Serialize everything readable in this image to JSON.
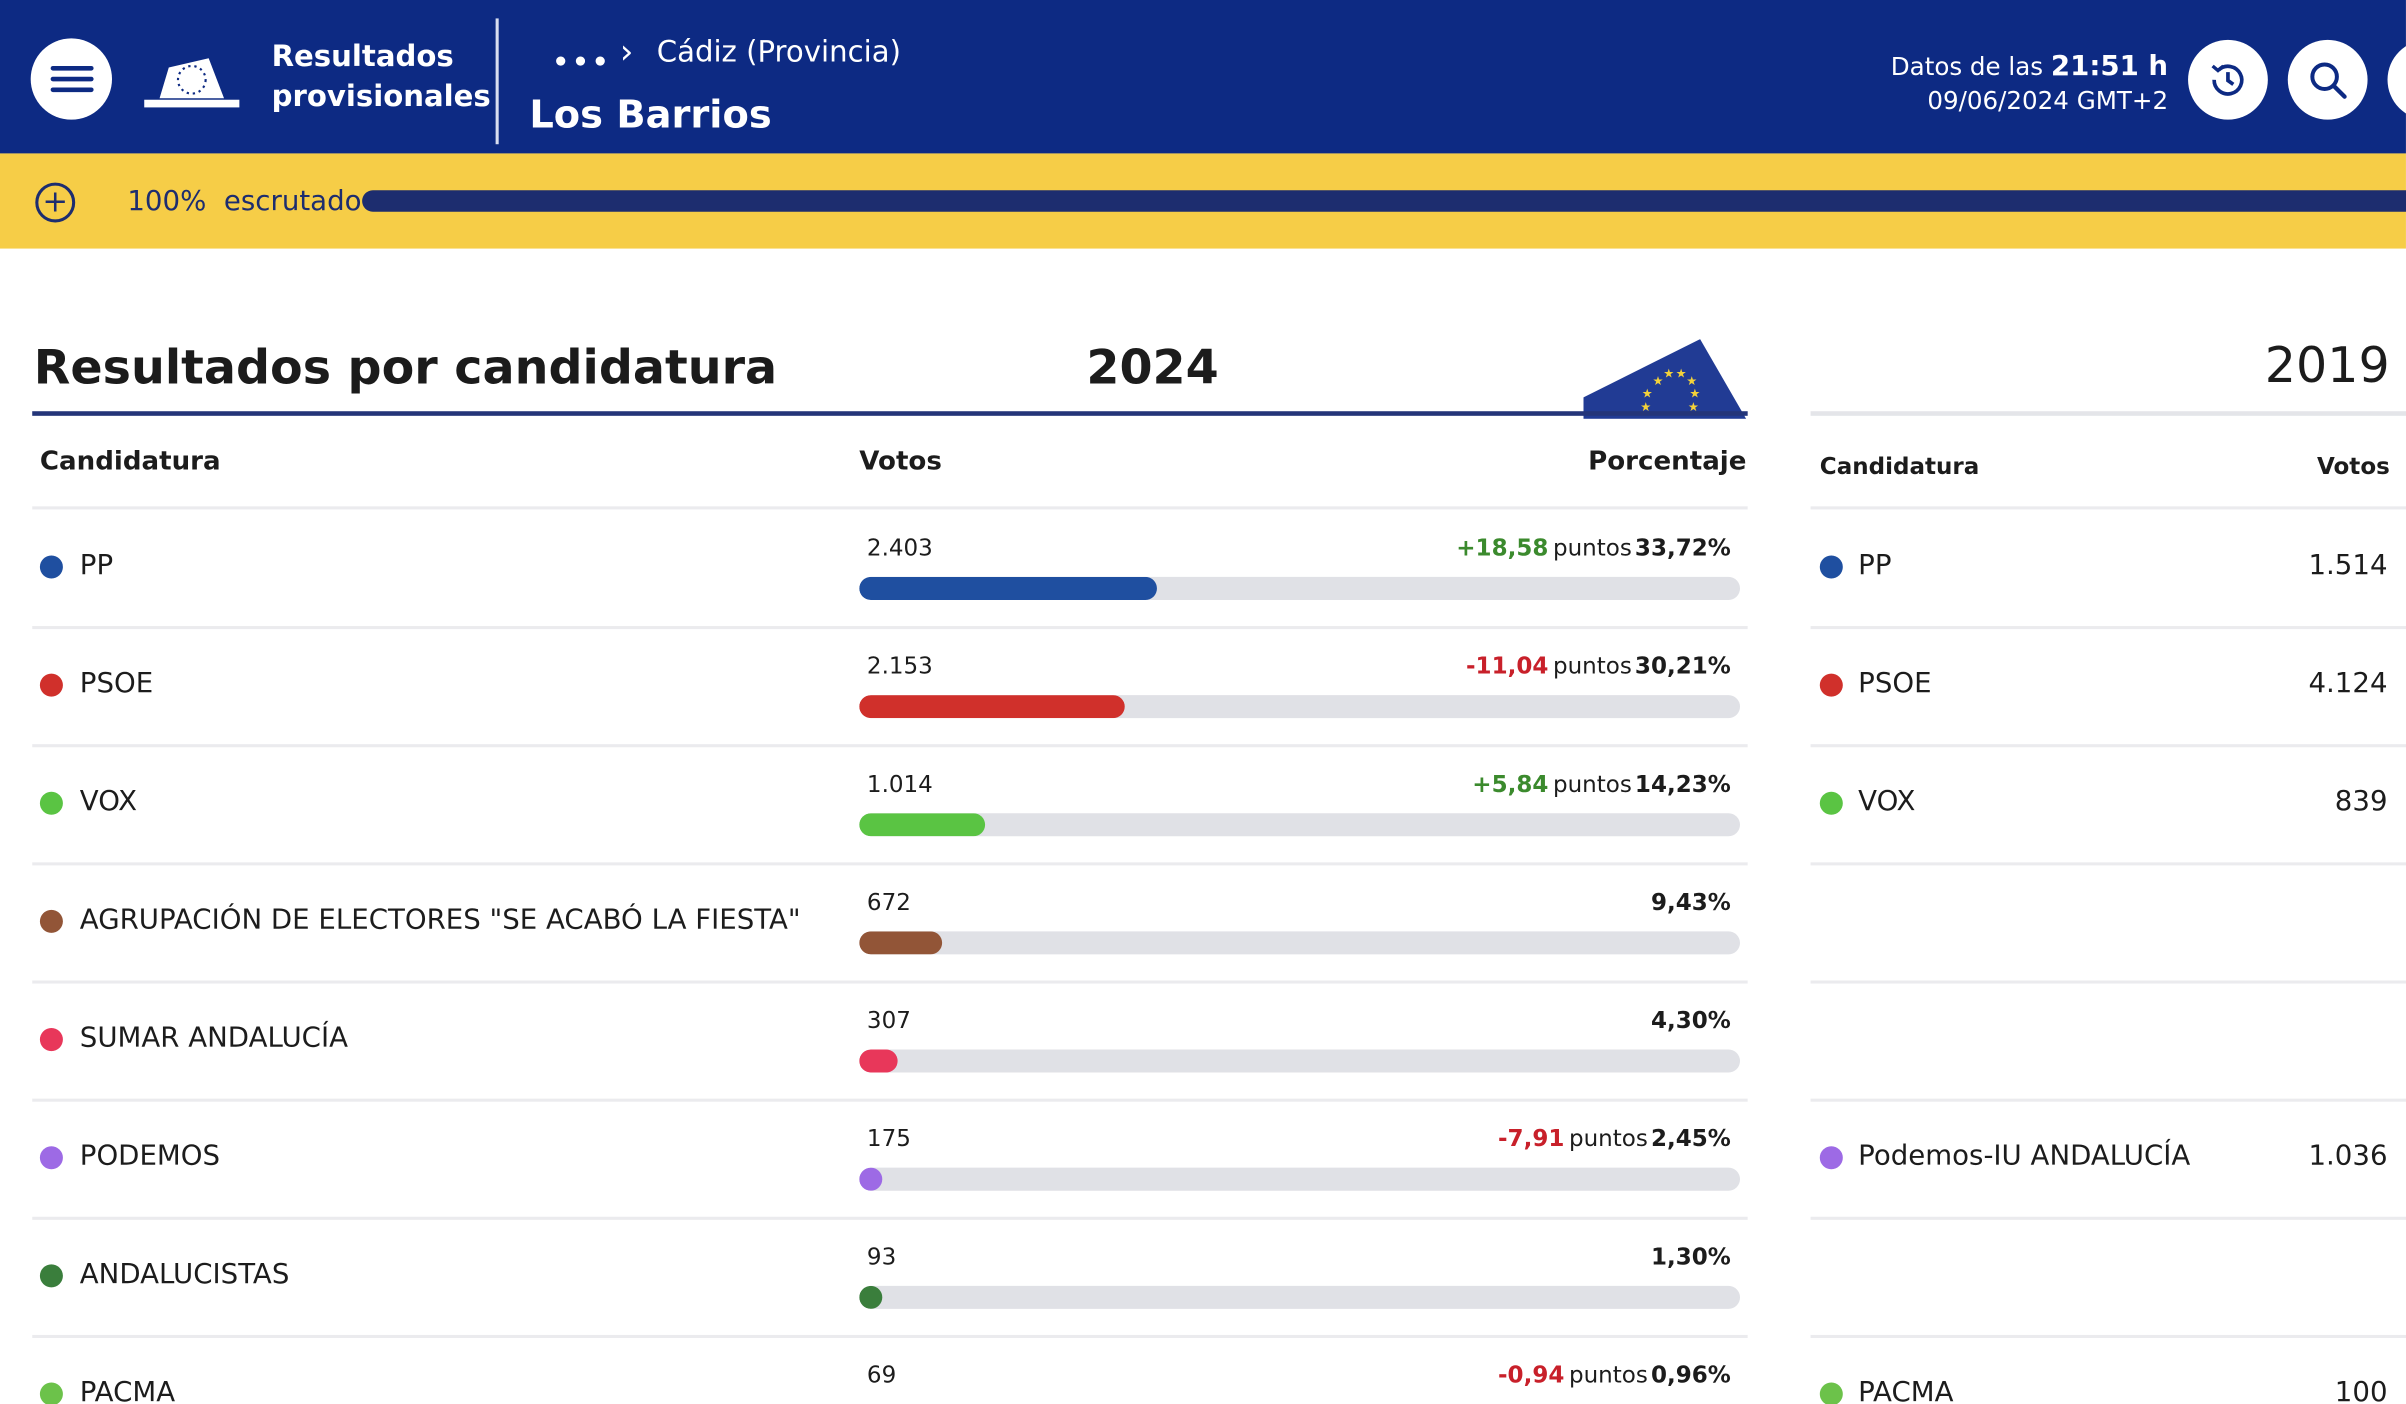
{
  "header": {
    "brand": "Resultados\nprovisionales",
    "breadcrumb_more": "•••",
    "breadcrumb_parent": "Cádiz (Provincia)",
    "place": "Los Barrios",
    "data_prefix": "Datos de las",
    "data_time": "21:51 h",
    "data_date": "09/06/2024 GMT+2"
  },
  "scrutiny": {
    "percent": "100%",
    "label": "escrutado",
    "fraction": 1.0
  },
  "section": {
    "title": "Resultados por candidatura",
    "year_current": "2024",
    "year_previous": "2019",
    "col_candidatura": "Candidatura",
    "col_votos": "Votos",
    "col_porcentaje": "Porcentaje",
    "col_candidatura_prev": "Candidatura",
    "col_votos_prev": "Votos",
    "points_word": "puntos"
  },
  "colors": {
    "header_bg": "#0d2a83",
    "scrutiny_bg": "#f6cd47",
    "change_up": "#3b8a2d",
    "change_down": "#c8202a"
  },
  "rows": [
    {
      "name": "PP",
      "votes": "2.403",
      "change": "+18,58",
      "pct": "33,72%",
      "fraction": 0.3372,
      "color": "#1f4fa0",
      "prev_name": "PP",
      "prev_votes": "1.514"
    },
    {
      "name": "PSOE",
      "votes": "2.153",
      "change": "-11,04",
      "pct": "30,21%",
      "fraction": 0.3021,
      "color": "#d0302b",
      "prev_name": "PSOE",
      "prev_votes": "4.124"
    },
    {
      "name": "VOX",
      "votes": "1.014",
      "change": "+5,84",
      "pct": "14,23%",
      "fraction": 0.1423,
      "color": "#5ac443",
      "prev_name": "VOX",
      "prev_votes": "839"
    },
    {
      "name": "AGRUPACIÓN DE ELECTORES \"SE ACABÓ LA FIESTA\"",
      "votes": "672",
      "change": "",
      "pct": "9,43%",
      "fraction": 0.0943,
      "color": "#925537",
      "prev_name": "",
      "prev_votes": ""
    },
    {
      "name": "SUMAR ANDALUCÍA",
      "votes": "307",
      "change": "",
      "pct": "4,30%",
      "fraction": 0.043,
      "color": "#e8375a",
      "prev_name": "",
      "prev_votes": ""
    },
    {
      "name": "PODEMOS",
      "votes": "175",
      "change": "-7,91",
      "pct": "2,45%",
      "fraction": 0.0245,
      "color": "#9d6ae5",
      "prev_name": "Podemos-IU ANDALUCÍA",
      "prev_votes": "1.036"
    },
    {
      "name": "ANDALUCISTAS",
      "votes": "93",
      "change": "",
      "pct": "1,30%",
      "fraction": 0.013,
      "color": "#3a7e3c",
      "prev_name": "",
      "prev_votes": ""
    },
    {
      "name": "PACMA",
      "votes": "69",
      "change": "-0,94",
      "pct": "0,96%",
      "fraction": 0.0096,
      "color": "#6cc24a",
      "prev_name": "PACMA",
      "prev_votes": "100"
    }
  ]
}
